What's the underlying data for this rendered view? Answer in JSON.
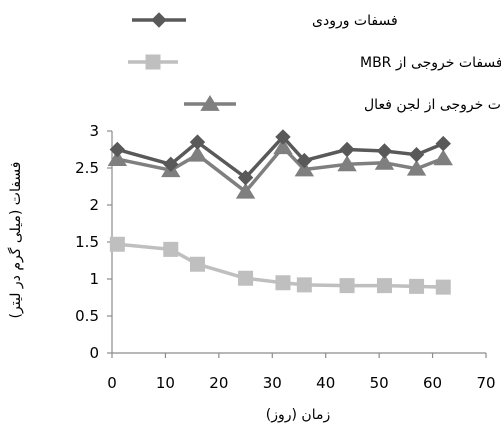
{
  "chart_data": {
    "type": "line",
    "xlabel": "زمان (روز)",
    "ylabel": "فسفات (میلی گرم در لیتر)",
    "xlim": [
      0,
      70
    ],
    "ylim": [
      0,
      3
    ],
    "xticks": [
      0,
      10,
      20,
      30,
      40,
      50,
      60,
      70
    ],
    "yticks": [
      0,
      0.5,
      1,
      1.5,
      2,
      2.5,
      3
    ],
    "legend_position": "top",
    "grid": false,
    "series": [
      {
        "name": "فسفات ورودی",
        "color": "#595959",
        "marker": "diamond",
        "x": [
          1,
          11,
          16,
          25,
          32,
          36,
          44,
          51,
          57,
          62
        ],
        "y": [
          2.75,
          2.55,
          2.85,
          2.37,
          2.92,
          2.6,
          2.75,
          2.73,
          2.68,
          2.83
        ]
      },
      {
        "name": "فسفات خروجی از MBR",
        "color": "#bfbfbf",
        "marker": "square",
        "x": [
          1,
          11,
          16,
          25,
          32,
          36,
          44,
          51,
          57,
          62
        ],
        "y": [
          1.47,
          1.4,
          1.2,
          1.01,
          0.95,
          0.92,
          0.91,
          0.91,
          0.9,
          0.89
        ]
      },
      {
        "name": "فسفات خروجی از  لجن فعال",
        "color": "#7f7f7f",
        "marker": "triangle",
        "x": [
          1,
          11,
          16,
          25,
          32,
          36,
          44,
          51,
          57,
          62
        ],
        "y": [
          2.62,
          2.47,
          2.68,
          2.18,
          2.78,
          2.48,
          2.55,
          2.57,
          2.49,
          2.63
        ]
      }
    ]
  }
}
